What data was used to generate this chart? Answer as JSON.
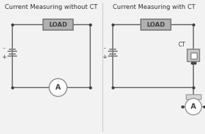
{
  "title_left": "Current Measuring without CT",
  "title_right": "Current Measuring with CT",
  "bg_color": "#f2f2f2",
  "wire_color": "#808080",
  "wire_lw": 1.4,
  "dot_color": "#404040",
  "load_face": "#b0b0b0",
  "load_edge": "#707070",
  "load_text": "LOAD",
  "ammeter_text": "A",
  "ct_text": "CT",
  "title_fontsize": 6.5,
  "component_fontsize": 7.5
}
